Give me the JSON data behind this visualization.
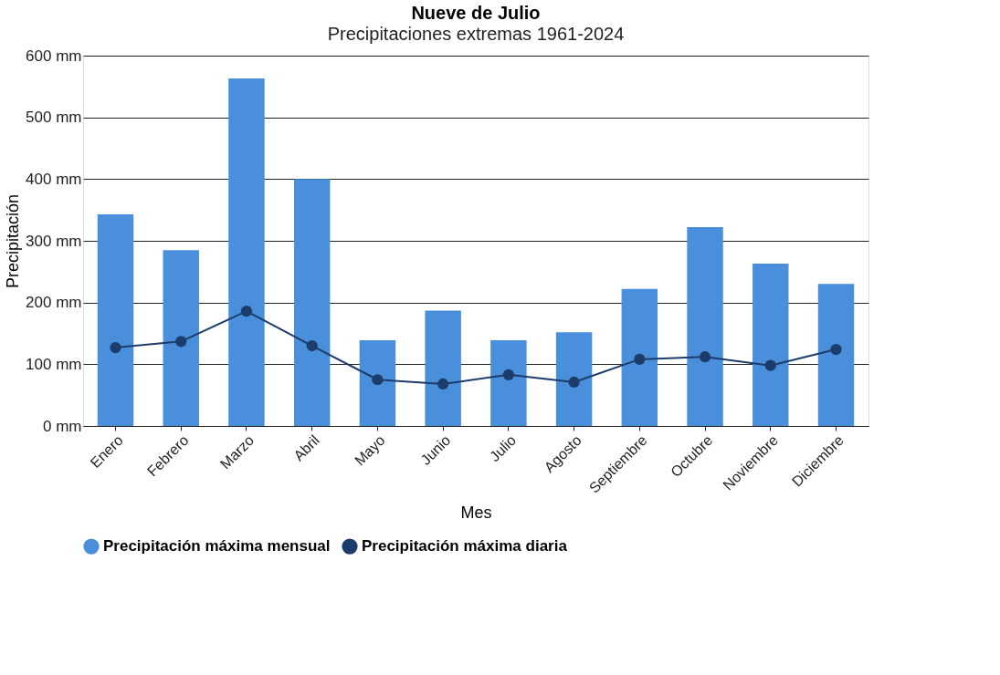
{
  "chart_data": {
    "type": "bar",
    "title": "Nueve de Julio",
    "subtitle": "Precipitaciones extremas 1961-2024",
    "xlabel": "Mes",
    "ylabel": "Precipitación",
    "categories": [
      "Enero",
      "Febrero",
      "Marzo",
      "Abril",
      "Mayo",
      "Junio",
      "Julio",
      "Agosto",
      "Septiembre",
      "Octubre",
      "Noviembre",
      "Diciembre"
    ],
    "series": [
      {
        "name": "Precipitación máxima mensual",
        "color": "#4a8fdb",
        "values": [
          343,
          285,
          563,
          400,
          139,
          187,
          139,
          152,
          222,
          322,
          263,
          230
        ]
      },
      {
        "name": "Precipitación máxima diaria",
        "type": "line",
        "color": "#1c3d6b",
        "marker": "circle",
        "line_style": "solid",
        "values": [
          127,
          137,
          186,
          130,
          75,
          68,
          83,
          71,
          108,
          112,
          98,
          124
        ]
      }
    ],
    "ylim": [
      0,
      600
    ],
    "yticks": [
      {
        "value": 0,
        "label": "0 mm"
      },
      {
        "value": 100,
        "label": "100 mm"
      },
      {
        "value": 200,
        "label": "200 mm"
      },
      {
        "value": 300,
        "label": "300 mm"
      },
      {
        "value": 400,
        "label": "400 mm"
      },
      {
        "value": 500,
        "label": "500 mm"
      },
      {
        "value": 600,
        "label": "600 mm"
      }
    ],
    "grid": "y",
    "legend": "bottom"
  }
}
